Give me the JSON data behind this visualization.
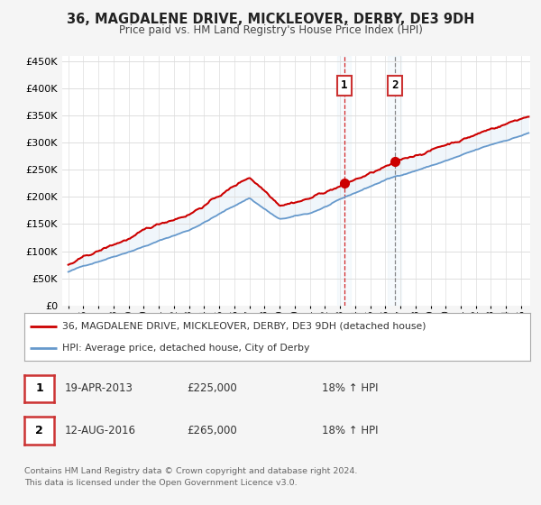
{
  "title": "36, MAGDALENE DRIVE, MICKLEOVER, DERBY, DE3 9DH",
  "subtitle": "Price paid vs. HM Land Registry's House Price Index (HPI)",
  "ylabel_ticks": [
    "£0",
    "£50K",
    "£100K",
    "£150K",
    "£200K",
    "£250K",
    "£300K",
    "£350K",
    "£400K",
    "£450K"
  ],
  "y_values": [
    0,
    50000,
    100000,
    150000,
    200000,
    250000,
    300000,
    350000,
    400000,
    450000
  ],
  "ylim": [
    0,
    460000
  ],
  "legend1": "36, MAGDALENE DRIVE, MICKLEOVER, DERBY, DE3 9DH (detached house)",
  "legend2": "HPI: Average price, detached house, City of Derby",
  "red_line_color": "#cc0000",
  "blue_line_color": "#6699cc",
  "blue_fill_color": "#d6e8f5",
  "point1_year": 2013.29,
  "point1_price": 225000,
  "point2_year": 2016.62,
  "point2_price": 265000,
  "point1_date": "19-APR-2013",
  "point2_date": "12-AUG-2016",
  "point1_hpi": "18% ↑ HPI",
  "point2_hpi": "18% ↑ HPI",
  "footer": "Contains HM Land Registry data © Crown copyright and database right 2024.\nThis data is licensed under the Open Government Licence v3.0.",
  "background_color": "#f5f5f5",
  "plot_bg_color": "#ffffff",
  "grid_color": "#dddddd"
}
